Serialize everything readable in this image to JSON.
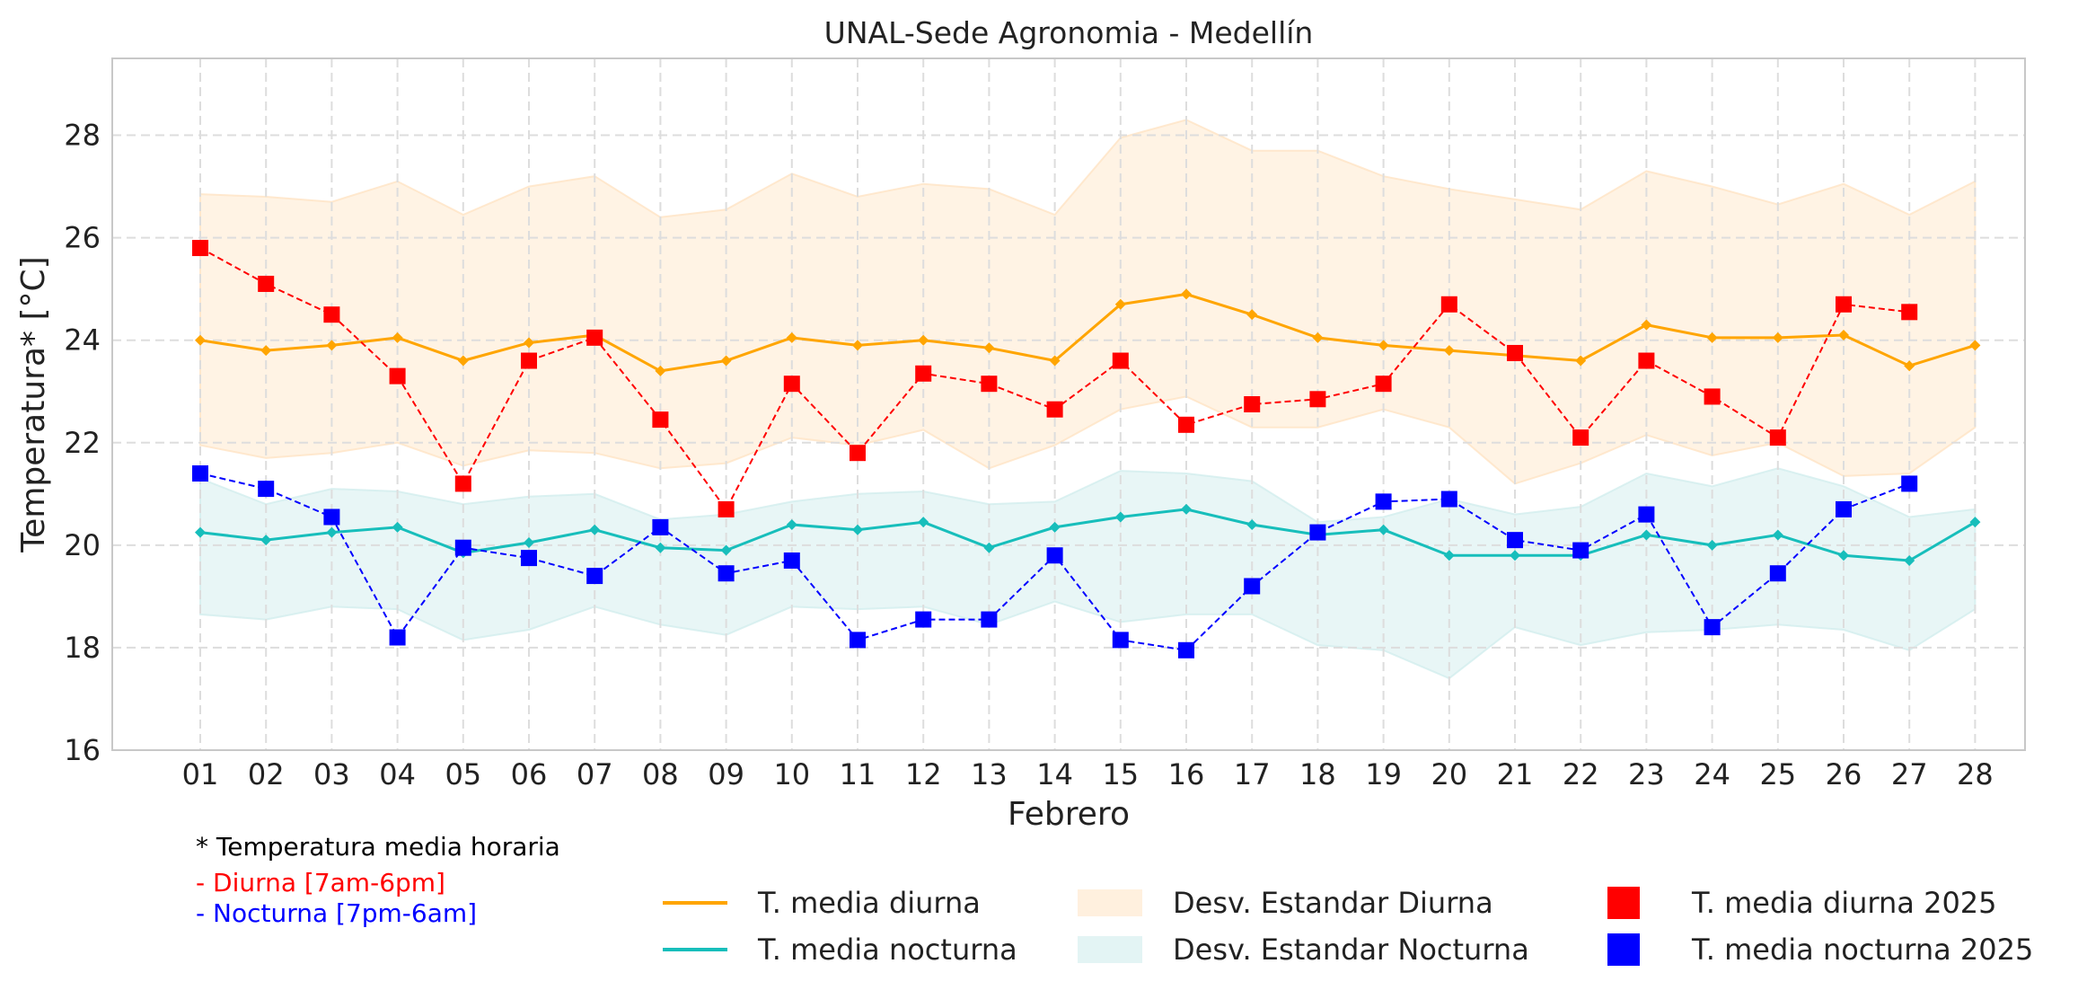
{
  "chart_data": {
    "type": "line",
    "title": "UNAL-Sede Agronomia - Medellín",
    "xlabel": "Febrero",
    "ylabel": "Temperatura* [°C]",
    "ylim": [
      16,
      29.5
    ],
    "yticks": [
      16,
      18,
      20,
      22,
      24,
      26,
      28
    ],
    "grid": true,
    "categories": [
      "01",
      "02",
      "03",
      "04",
      "05",
      "06",
      "07",
      "08",
      "09",
      "10",
      "11",
      "12",
      "13",
      "14",
      "15",
      "16",
      "17",
      "18",
      "19",
      "20",
      "21",
      "22",
      "23",
      "24",
      "25",
      "26",
      "27",
      "28"
    ],
    "series": [
      {
        "name": "T. media diurna",
        "kind": "line",
        "color": "#FFA500",
        "values": [
          24.0,
          23.8,
          23.9,
          24.05,
          23.6,
          23.95,
          24.1,
          23.4,
          23.6,
          24.05,
          23.9,
          24.0,
          23.85,
          23.6,
          24.7,
          24.9,
          24.5,
          24.05,
          23.9,
          23.8,
          23.7,
          23.6,
          24.3,
          24.05,
          24.05,
          24.1,
          23.5,
          23.9
        ]
      },
      {
        "name": "T. media nocturna",
        "kind": "line",
        "color": "#17BEBB",
        "values": [
          20.25,
          20.1,
          20.25,
          20.35,
          19.85,
          20.05,
          20.3,
          19.95,
          19.9,
          20.4,
          20.3,
          20.45,
          19.95,
          20.35,
          20.55,
          20.7,
          20.4,
          20.2,
          20.3,
          19.8,
          19.8,
          19.8,
          20.2,
          20.0,
          20.2,
          19.8,
          19.7,
          20.45
        ]
      },
      {
        "name": "Desv. Estandar Diurna",
        "kind": "band",
        "color": "#FFE4C4",
        "upper": [
          26.85,
          26.8,
          26.7,
          27.1,
          26.45,
          27.0,
          27.2,
          26.4,
          26.55,
          27.25,
          26.8,
          27.05,
          26.95,
          26.45,
          27.95,
          28.3,
          27.7,
          27.7,
          27.2,
          26.95,
          26.75,
          26.55,
          27.3,
          27.0,
          26.65,
          27.05,
          26.45,
          27.1
        ],
        "lower": [
          21.95,
          21.7,
          21.8,
          22.0,
          21.55,
          21.85,
          21.8,
          21.5,
          21.6,
          22.1,
          21.95,
          22.25,
          21.5,
          21.95,
          22.65,
          22.9,
          22.3,
          22.3,
          22.65,
          22.3,
          21.2,
          21.6,
          22.15,
          21.75,
          22.0,
          21.35,
          21.4,
          22.3
        ]
      },
      {
        "name": "Desv. Estandar Nocturna",
        "kind": "band",
        "color": "#D2EEEE",
        "upper": [
          21.3,
          20.8,
          21.1,
          21.05,
          20.8,
          20.95,
          21.0,
          20.5,
          20.6,
          20.85,
          21.0,
          21.05,
          20.8,
          20.85,
          21.45,
          21.4,
          21.25,
          20.45,
          20.55,
          20.9,
          20.6,
          20.75,
          21.4,
          21.15,
          21.5,
          21.15,
          20.55,
          20.7
        ],
        "lower": [
          18.65,
          18.55,
          18.8,
          18.75,
          18.15,
          18.35,
          18.8,
          18.45,
          18.25,
          18.8,
          18.75,
          18.8,
          18.45,
          18.9,
          18.5,
          18.65,
          18.65,
          18.05,
          17.95,
          17.4,
          18.4,
          18.05,
          18.3,
          18.35,
          18.45,
          18.35,
          17.95,
          18.75
        ]
      },
      {
        "name": "T. media diurna 2025",
        "kind": "markers",
        "color": "#FF0000",
        "values": [
          25.8,
          25.1,
          24.5,
          23.3,
          21.2,
          23.6,
          24.05,
          22.45,
          20.7,
          23.15,
          21.8,
          23.35,
          23.15,
          22.65,
          23.6,
          22.35,
          22.75,
          22.85,
          23.15,
          24.7,
          23.75,
          22.1,
          23.6,
          22.9,
          22.1,
          24.7,
          24.55,
          null
        ]
      },
      {
        "name": "T. media nocturna 2025",
        "kind": "markers",
        "color": "#0000FF",
        "values": [
          21.4,
          21.1,
          20.55,
          18.2,
          19.95,
          19.75,
          19.4,
          20.35,
          19.45,
          19.7,
          18.15,
          18.55,
          18.55,
          19.8,
          18.15,
          17.95,
          19.2,
          20.25,
          20.85,
          20.9,
          20.1,
          19.9,
          20.6,
          18.4,
          19.45,
          20.7,
          21.2,
          null
        ]
      }
    ],
    "legend_position": "bottom"
  },
  "notes": {
    "line1": "* Temperatura media horaria",
    "line2": "- Diurna [7am-6pm]",
    "line3": "- Nocturna [7pm-6am]",
    "color2": "#FF0000",
    "color3": "#0000FF"
  },
  "legend": {
    "media_diurna": "T. media diurna",
    "media_nocturna": "T. media nocturna",
    "desv_diurna": "Desv. Estandar Diurna",
    "desv_nocturna": "Desv. Estandar Nocturna",
    "diurna_2025": "T. media diurna 2025",
    "nocturna_2025": "T. media nocturna 2025"
  }
}
